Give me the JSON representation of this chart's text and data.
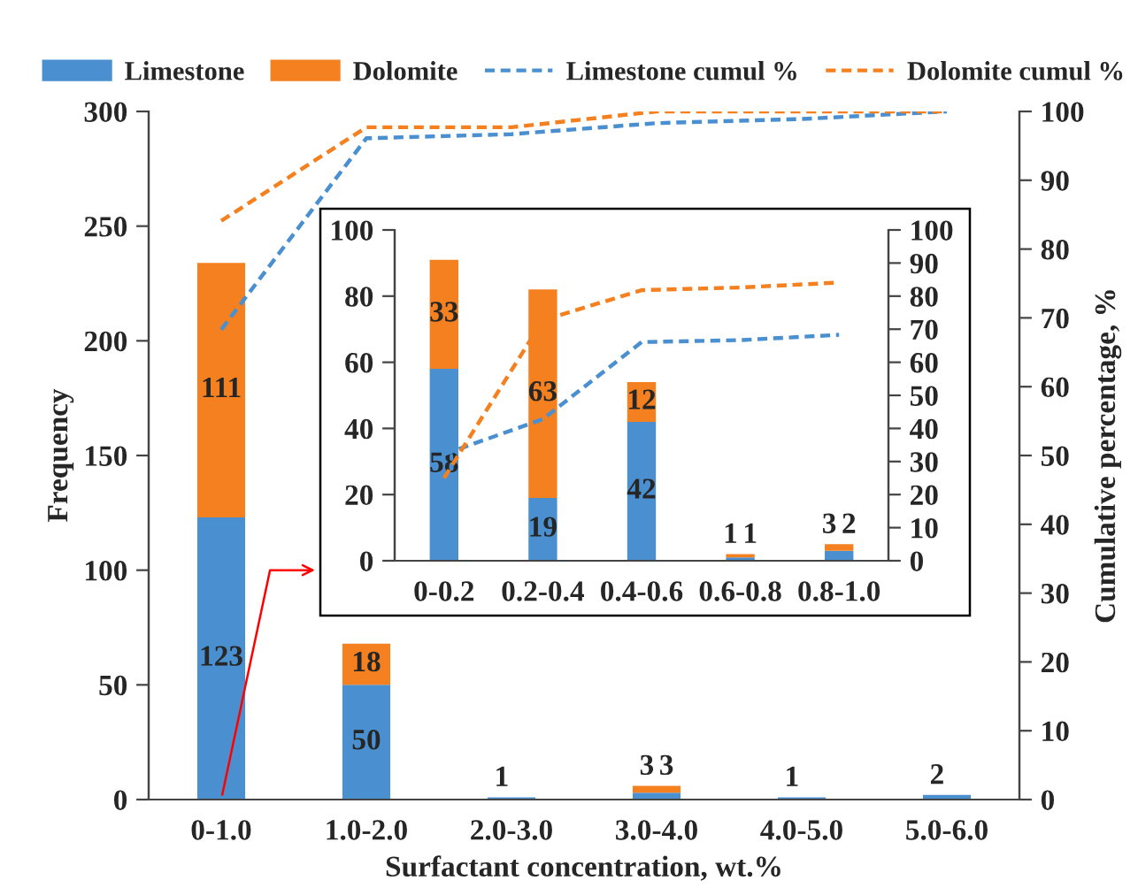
{
  "chart_data": [
    {
      "type": "bar",
      "stacked": true,
      "xlabel": "Surfactant concentration, wt.%",
      "ylabel": "Frequency",
      "y2label": "Cumulative percentage, %",
      "categories": [
        "0-1.0",
        "1.0-2.0",
        "2.0-3.0",
        "3.0-4.0",
        "4.0-5.0",
        "5.0-6.0"
      ],
      "series": [
        {
          "name": "Limestone",
          "color": "#4a90d0",
          "values": [
            123,
            50,
            1,
            3,
            1,
            2
          ],
          "value_labels": [
            "123",
            "50",
            "1",
            "3",
            "1",
            "2"
          ]
        },
        {
          "name": "Dolomite",
          "color": "#f4801f",
          "values": [
            111,
            18,
            0,
            3,
            0,
            0
          ],
          "value_labels": [
            "111",
            "18",
            null,
            "3",
            null,
            null
          ]
        },
        {
          "name": "Limestone cumul %",
          "type": "line",
          "axis": "y2",
          "line_style": "dashed",
          "color": "#4a90d0",
          "values": [
            68.3,
            96.1,
            96.7,
            98.3,
            98.9,
            100
          ]
        },
        {
          "name": "Dolomite cumul %",
          "type": "line",
          "axis": "y2",
          "line_style": "dashed",
          "color": "#f4801f",
          "values": [
            84.1,
            97.7,
            97.7,
            100,
            100,
            100
          ]
        }
      ],
      "ylim": [
        0,
        300
      ],
      "yticks": [
        0,
        50,
        100,
        150,
        200,
        250,
        300
      ],
      "y2lim": [
        0,
        100
      ],
      "y2ticks": [
        0,
        10,
        20,
        30,
        40,
        50,
        60,
        70,
        80,
        90,
        100
      ],
      "legend": "top",
      "grid": false
    },
    {
      "type": "bar",
      "stacked": true,
      "categories": [
        "0-0.2",
        "0.2-0.4",
        "0.4-0.6",
        "0.6-0.8",
        "0.8-1.0"
      ],
      "series": [
        {
          "color": "#4a90d0",
          "values": [
            58,
            19,
            42,
            1,
            3
          ],
          "value_labels": [
            "58",
            "19",
            "42",
            "1",
            "3"
          ]
        },
        {
          "color": "#f4801f",
          "values": [
            33,
            63,
            12,
            1,
            2
          ],
          "value_labels": [
            "33",
            "63",
            "12",
            "1",
            "2"
          ]
        },
        {
          "type": "line",
          "axis": "y2",
          "line_style": "dashed",
          "color": "#4a90d0",
          "values": [
            32.2,
            42.8,
            66.1,
            66.7,
            68.3
          ]
        },
        {
          "type": "line",
          "axis": "y2",
          "line_style": "dashed",
          "color": "#f4801f",
          "values": [
            25.0,
            72.7,
            81.8,
            82.6,
            84.1
          ]
        }
      ],
      "ylim": [
        0,
        100
      ],
      "yticks": [
        0,
        20,
        40,
        60,
        80,
        100
      ],
      "y2lim": [
        0,
        100
      ],
      "y2ticks": [
        0,
        10,
        20,
        30,
        40,
        50,
        60,
        70,
        80,
        90,
        100
      ],
      "grid": false
    }
  ]
}
